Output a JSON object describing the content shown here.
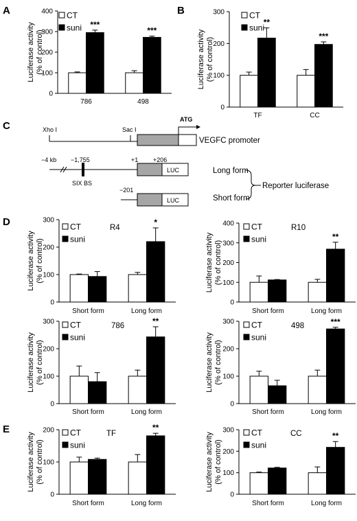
{
  "panel_labels": {
    "A": "A",
    "B": "B",
    "C": "C",
    "D": "D",
    "E": "E"
  },
  "colors": {
    "ct": "#ffffff",
    "suni": "#000000",
    "promoter_box": "#a6a6a6",
    "axis": "#000000"
  },
  "chart_data": [
    {
      "type": "bar",
      "id": "A",
      "title": "",
      "categories": [
        "786",
        "498"
      ],
      "ylabel": "Luciferase activity\n(% of control)",
      "ylim": [
        0,
        400
      ],
      "yticks": [
        0,
        100,
        200,
        300,
        400
      ],
      "legend": [
        "CT",
        "suni"
      ],
      "legend_position": "top-left",
      "series": [
        {
          "name": "CT",
          "values": [
            100,
            100
          ],
          "errors": [
            4,
            10
          ]
        },
        {
          "name": "suni",
          "values": [
            295,
            272
          ],
          "errors": [
            12,
            6
          ]
        }
      ],
      "significance": [
        "***",
        "***"
      ]
    },
    {
      "type": "bar",
      "id": "B",
      "title": "",
      "categories": [
        "TF",
        "CC"
      ],
      "ylabel": "Luciferase activity\n(% of control)",
      "ylim": [
        0,
        300
      ],
      "yticks": [
        0,
        100,
        200,
        300
      ],
      "legend": [
        "CT",
        "suni"
      ],
      "legend_position": "top-left",
      "series": [
        {
          "name": "CT",
          "values": [
            100,
            100
          ],
          "errors": [
            10,
            18
          ]
        },
        {
          "name": "suni",
          "values": [
            217,
            197
          ],
          "errors": [
            32,
            8
          ]
        }
      ],
      "significance": [
        "**",
        "***"
      ]
    },
    {
      "type": "bar",
      "id": "D-R4",
      "title": "R4",
      "categories": [
        "Short form",
        "Long form"
      ],
      "ylabel": "Luciferase activity\n(% of control)",
      "ylim": [
        0,
        300
      ],
      "yticks": [
        0,
        100,
        200,
        300
      ],
      "legend": [
        "CT",
        "suni"
      ],
      "legend_position": "top-left",
      "series": [
        {
          "name": "CT",
          "values": [
            100,
            100
          ],
          "errors": [
            2,
            8
          ]
        },
        {
          "name": "suni",
          "values": [
            93,
            220
          ],
          "errors": [
            18,
            50
          ]
        }
      ],
      "significance": [
        "",
        "*"
      ]
    },
    {
      "type": "bar",
      "id": "D-R10",
      "title": "R10",
      "categories": [
        "Short form",
        "Long form"
      ],
      "ylabel": "Luciferase activity\n(% of control)",
      "ylim": [
        0,
        400
      ],
      "yticks": [
        0,
        100,
        200,
        300,
        400
      ],
      "legend": [
        "CT",
        "suni"
      ],
      "legend_position": "top-left",
      "series": [
        {
          "name": "CT",
          "values": [
            100,
            100
          ],
          "errors": [
            32,
            15
          ]
        },
        {
          "name": "suni",
          "values": [
            112,
            268
          ],
          "errors": [
            2,
            35
          ]
        }
      ],
      "significance": [
        "",
        "**"
      ]
    },
    {
      "type": "bar",
      "id": "D-786",
      "title": "786",
      "categories": [
        "Short form",
        "Long form"
      ],
      "ylabel": "Luciferase activity\n(% of control)",
      "ylim": [
        0,
        300
      ],
      "yticks": [
        0,
        100,
        200,
        300
      ],
      "legend": [
        "CT",
        "suni"
      ],
      "legend_position": "top-left",
      "series": [
        {
          "name": "CT",
          "values": [
            100,
            100
          ],
          "errors": [
            37,
            22
          ]
        },
        {
          "name": "suni",
          "values": [
            80,
            243
          ],
          "errors": [
            33,
            37
          ]
        }
      ],
      "significance": [
        "",
        "**"
      ]
    },
    {
      "type": "bar",
      "id": "D-498",
      "title": "498",
      "categories": [
        "Short form",
        "Long form"
      ],
      "ylabel": "Luciferase activity\n(% of control)",
      "ylim": [
        0,
        300
      ],
      "yticks": [
        0,
        100,
        200,
        300
      ],
      "legend": [
        "CT",
        "suni"
      ],
      "legend_position": "top-left",
      "series": [
        {
          "name": "CT",
          "values": [
            100,
            100
          ],
          "errors": [
            18,
            22
          ]
        },
        {
          "name": "suni",
          "values": [
            65,
            272
          ],
          "errors": [
            20,
            6
          ]
        }
      ],
      "significance": [
        "",
        "***"
      ]
    },
    {
      "type": "bar",
      "id": "E-TF",
      "title": "TF",
      "categories": [
        "Short form",
        "Long form"
      ],
      "ylabel": "Luciferase activity\n(% of control)",
      "ylim": [
        0,
        200
      ],
      "yticks": [
        0,
        100,
        200
      ],
      "legend": [
        "CT",
        "suni"
      ],
      "legend_position": "top-left",
      "series": [
        {
          "name": "CT",
          "values": [
            100,
            100
          ],
          "errors": [
            15,
            23
          ]
        },
        {
          "name": "suni",
          "values": [
            108,
            181
          ],
          "errors": [
            4,
            8
          ]
        }
      ],
      "significance": [
        "",
        "**"
      ]
    },
    {
      "type": "bar",
      "id": "E-CC",
      "title": "CC",
      "categories": [
        "Short form",
        "Long form"
      ],
      "ylabel": "Luciferase activity\n(% of control)",
      "ylim": [
        0,
        300
      ],
      "yticks": [
        0,
        100,
        200,
        300
      ],
      "legend": [
        "CT",
        "suni"
      ],
      "legend_position": "top-left",
      "series": [
        {
          "name": "CT",
          "values": [
            100,
            100
          ],
          "errors": [
            3,
            27
          ]
        },
        {
          "name": "suni",
          "values": [
            122,
            218
          ],
          "errors": [
            3,
            27
          ]
        }
      ],
      "significance": [
        "",
        "**"
      ]
    }
  ],
  "diagram": {
    "xho": "Xho I",
    "sac": "Sac I",
    "atg": "ATG",
    "promoter_label": "VEGFC promoter",
    "kb": "−4 kb",
    "pos_1755": "−1,755",
    "six": "SIX BS",
    "plus1": "+1",
    "plus206": "+206",
    "minus201": "−201",
    "luc": "LUC",
    "long_form": "Long form",
    "short_form": "Short form",
    "reporter": "Reporter luciferase"
  }
}
